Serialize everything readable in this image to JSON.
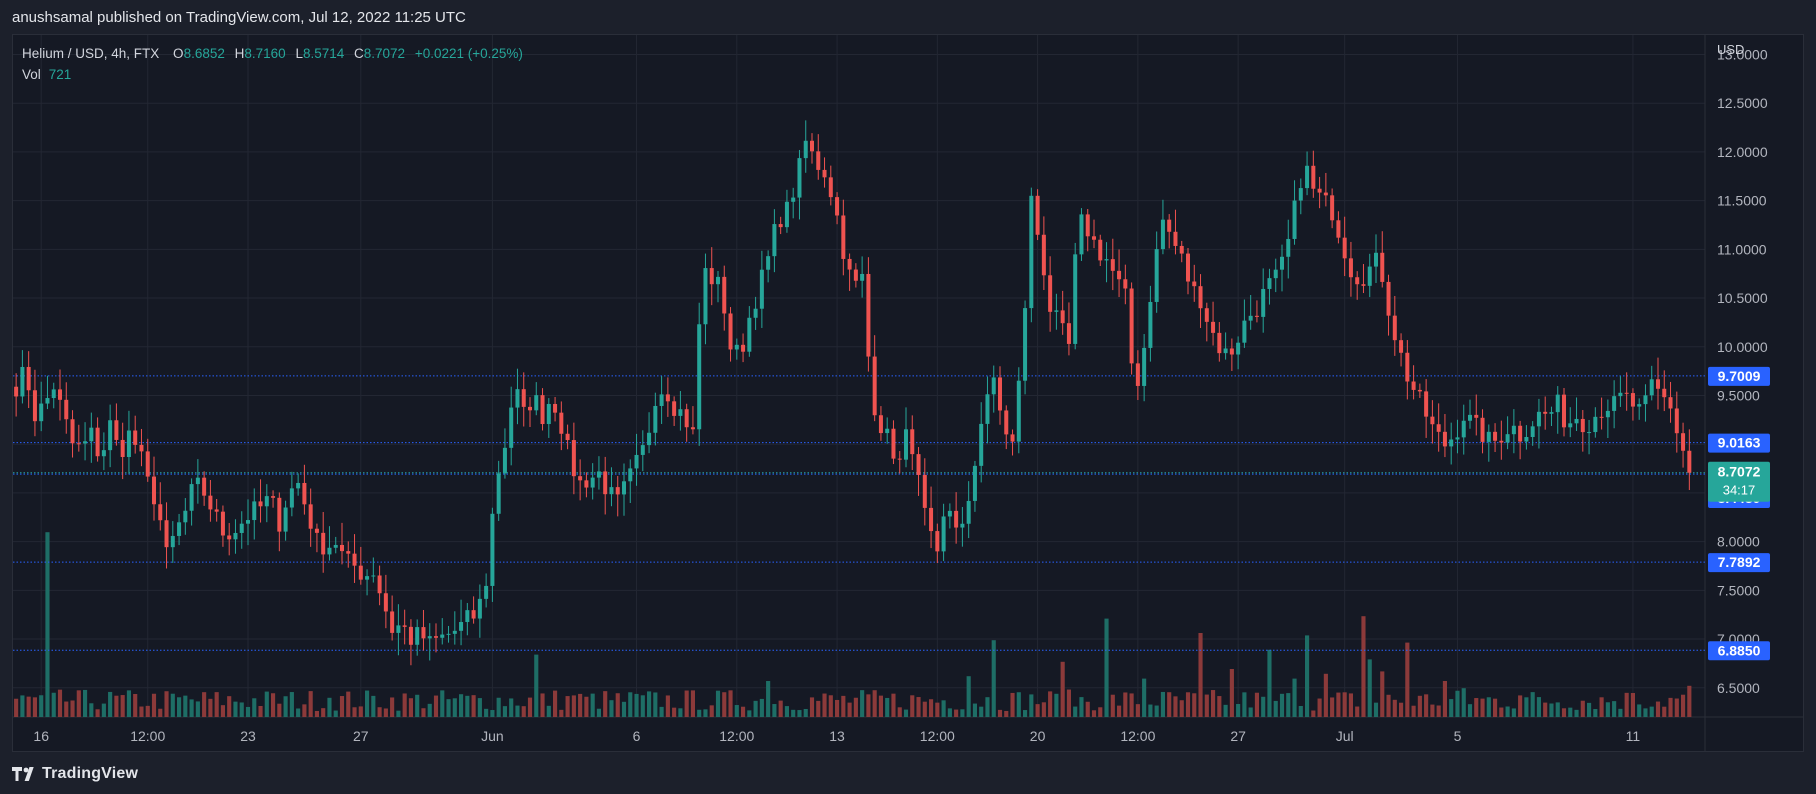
{
  "header": {
    "published_text": "anushsamal published on TradingView.com, Jul 12, 2022 11:25 UTC"
  },
  "legend": {
    "symbol": "Helium / USD, 4h, FTX",
    "o_label": "O",
    "o_value": "8.6852",
    "h_label": "H",
    "h_value": "8.7160",
    "l_label": "L",
    "l_value": "8.5714",
    "c_label": "C",
    "c_value": "8.7072",
    "change": "+0.0221 (+0.25%)",
    "vol_label": "Vol",
    "vol_value": "721"
  },
  "footer": {
    "brand": "TradingView",
    "brand_icon": "tradingview-logo-icon"
  },
  "colors": {
    "up": "#26a69a",
    "down": "#ef5350",
    "up_vol": "#1e6e66",
    "down_vol": "#8c3a3a",
    "hline": "#2962ff",
    "label_bg": "#2962ff",
    "last_bg": "#26a69a"
  },
  "chart_data": {
    "type": "candlestick",
    "currency": "USD",
    "timeframe": "4h",
    "ylim": [
      6.2,
      13.2
    ],
    "yticks": [
      "13.0000",
      "12.5000",
      "12.0000",
      "11.5000",
      "11.0000",
      "10.5000",
      "10.0000",
      "9.5000",
      "9.0000",
      "8.5000",
      "8.0000",
      "7.5000",
      "7.0000",
      "6.5000"
    ],
    "x_ticks": [
      {
        "label": "16",
        "bar": 4
      },
      {
        "label": "12:00",
        "bar": 21
      },
      {
        "label": "23",
        "bar": 37
      },
      {
        "label": "27",
        "bar": 55
      },
      {
        "label": "Jun",
        "bar": 76
      },
      {
        "label": "6",
        "bar": 99
      },
      {
        "label": "12:00",
        "bar": 115
      },
      {
        "label": "13",
        "bar": 131
      },
      {
        "label": "12:00",
        "bar": 147
      },
      {
        "label": "20",
        "bar": 163
      },
      {
        "label": "12:00",
        "bar": 179
      },
      {
        "label": "27",
        "bar": 195
      },
      {
        "label": "Jul",
        "bar": 212
      },
      {
        "label": "5",
        "bar": 230
      },
      {
        "label": "11",
        "bar": 258
      }
    ],
    "horizontal_lines": [
      9.7009,
      9.0163,
      8.6934,
      7.7892,
      6.885
    ],
    "price_labels": [
      {
        "text": "9.7009",
        "price": 9.7009
      },
      {
        "text": "9.0163",
        "price": 9.0163
      },
      {
        "text": "8.6934",
        "price": 8.6934
      },
      {
        "text": "8.4480",
        "price": 8.448
      },
      {
        "text": "7.7892",
        "price": 7.7892
      },
      {
        "text": "6.8850",
        "price": 6.885
      }
    ],
    "last_price": {
      "text": "8.7072",
      "price": 8.7072,
      "countdown": "34:17"
    },
    "anchors": [
      [
        0,
        9.6
      ],
      [
        1,
        9.75
      ],
      [
        2,
        9.3
      ],
      [
        3,
        9.4
      ],
      [
        4,
        9.6
      ],
      [
        5,
        9.3
      ],
      [
        6,
        9.0
      ],
      [
        7,
        8.95
      ],
      [
        8,
        9.1
      ],
      [
        9,
        8.85
      ],
      [
        10,
        9.2
      ],
      [
        11,
        8.9
      ],
      [
        12,
        9.1
      ],
      [
        13,
        8.95
      ],
      [
        14,
        8.6
      ],
      [
        15,
        8.4
      ],
      [
        16,
        7.85
      ],
      [
        17,
        8.1
      ],
      [
        18,
        8.3
      ],
      [
        19,
        8.6
      ],
      [
        20,
        8.5
      ],
      [
        21,
        8.3
      ],
      [
        22,
        8.1
      ],
      [
        23,
        8.1
      ],
      [
        24,
        8.2
      ],
      [
        25,
        8.3
      ],
      [
        26,
        8.35
      ],
      [
        27,
        8.45
      ],
      [
        28,
        8.2
      ],
      [
        29,
        8.5
      ],
      [
        30,
        8.6
      ],
      [
        31,
        8.3
      ],
      [
        32,
        8.0
      ],
      [
        33,
        7.95
      ],
      [
        34,
        8.0
      ],
      [
        35,
        7.8
      ],
      [
        36,
        7.75
      ],
      [
        37,
        7.65
      ],
      [
        38,
        7.7
      ],
      [
        39,
        7.4
      ],
      [
        40,
        7.1
      ],
      [
        41,
        7.15
      ],
      [
        42,
        7.0
      ],
      [
        43,
        7.05
      ],
      [
        44,
        6.95
      ],
      [
        45,
        7.0
      ],
      [
        46,
        7.05
      ],
      [
        47,
        7.1
      ],
      [
        48,
        7.2
      ],
      [
        49,
        7.25
      ],
      [
        50,
        7.6
      ],
      [
        51,
        8.6
      ],
      [
        52,
        9.0
      ],
      [
        53,
        9.6
      ],
      [
        54,
        9.3
      ],
      [
        55,
        9.5
      ],
      [
        56,
        9.3
      ],
      [
        57,
        9.5
      ],
      [
        58,
        9.2
      ],
      [
        59,
        8.8
      ],
      [
        60,
        8.6
      ],
      [
        61,
        8.65
      ],
      [
        62,
        8.7
      ],
      [
        63,
        8.5
      ],
      [
        64,
        8.4
      ],
      [
        65,
        8.6
      ],
      [
        66,
        8.8
      ],
      [
        67,
        9.0
      ],
      [
        68,
        9.5
      ],
      [
        69,
        9.6
      ],
      [
        70,
        9.4
      ],
      [
        71,
        9.3
      ],
      [
        72,
        9.1
      ],
      [
        73,
        10.8
      ],
      [
        74,
        10.7
      ],
      [
        75,
        10.6
      ],
      [
        76,
        10.0
      ],
      [
        77,
        9.9
      ],
      [
        78,
        10.3
      ],
      [
        79,
        10.6
      ],
      [
        80,
        10.9
      ],
      [
        81,
        11.3
      ],
      [
        82,
        11.4
      ],
      [
        83,
        11.7
      ],
      [
        84,
        12.1
      ],
      [
        85,
        11.9
      ],
      [
        86,
        11.8
      ],
      [
        87,
        11.5
      ],
      [
        88,
        11.0
      ],
      [
        89,
        10.6
      ],
      [
        90,
        10.7
      ],
      [
        91,
        9.5
      ],
      [
        92,
        9.2
      ],
      [
        93,
        9.0
      ],
      [
        94,
        8.8
      ],
      [
        95,
        9.2
      ],
      [
        96,
        8.6
      ],
      [
        97,
        8.1
      ],
      [
        98,
        7.8
      ],
      [
        99,
        8.4
      ],
      [
        100,
        8.2
      ],
      [
        101,
        8.1
      ],
      [
        102,
        8.8
      ],
      [
        103,
        9.5
      ],
      [
        104,
        9.6
      ],
      [
        105,
        9.2
      ],
      [
        106,
        9.0
      ],
      [
        107,
        9.9
      ],
      [
        108,
        11.5
      ],
      [
        109,
        11.0
      ],
      [
        110,
        10.4
      ],
      [
        111,
        10.2
      ],
      [
        112,
        10.0
      ],
      [
        113,
        11.3
      ],
      [
        114,
        11.2
      ],
      [
        115,
        11.0
      ],
      [
        116,
        10.9
      ],
      [
        117,
        10.7
      ],
      [
        118,
        10.5
      ],
      [
        119,
        9.5
      ],
      [
        120,
        10.0
      ],
      [
        121,
        10.8
      ],
      [
        122,
        11.3
      ],
      [
        123,
        11.1
      ],
      [
        124,
        10.9
      ],
      [
        125,
        10.6
      ],
      [
        126,
        10.5
      ],
      [
        127,
        10.2
      ],
      [
        128,
        10.0
      ],
      [
        129,
        9.9
      ],
      [
        130,
        10.1
      ],
      [
        131,
        10.3
      ],
      [
        132,
        10.4
      ],
      [
        133,
        10.6
      ],
      [
        134,
        10.7
      ],
      [
        135,
        10.9
      ],
      [
        136,
        11.4
      ],
      [
        137,
        11.9
      ],
      [
        138,
        11.6
      ],
      [
        139,
        11.5
      ],
      [
        140,
        11.4
      ],
      [
        141,
        11.1
      ],
      [
        142,
        10.8
      ],
      [
        143,
        10.7
      ],
      [
        144,
        10.8
      ],
      [
        145,
        10.9
      ],
      [
        146,
        10.4
      ],
      [
        147,
        10.0
      ],
      [
        148,
        9.7
      ],
      [
        149,
        9.5
      ],
      [
        150,
        9.3
      ],
      [
        151,
        9.1
      ],
      [
        152,
        9.0
      ],
      [
        153,
        9.1
      ],
      [
        154,
        9.3
      ],
      [
        155,
        9.2
      ],
      [
        156,
        9.1
      ],
      [
        157,
        9.0
      ],
      [
        158,
        9.1
      ],
      [
        159,
        9.2
      ],
      [
        160,
        9.1
      ],
      [
        161,
        9.2
      ],
      [
        162,
        9.3
      ],
      [
        163,
        9.3
      ],
      [
        164,
        9.4
      ],
      [
        165,
        9.2
      ],
      [
        166,
        9.3
      ],
      [
        167,
        9.2
      ],
      [
        168,
        9.3
      ],
      [
        169,
        9.4
      ],
      [
        170,
        9.4
      ],
      [
        171,
        9.5
      ],
      [
        172,
        9.4
      ],
      [
        173,
        9.3
      ],
      [
        174,
        9.6
      ],
      [
        175,
        9.5
      ],
      [
        176,
        9.4
      ],
      [
        177,
        9.0
      ],
      [
        178,
        8.8
      ],
      [
        179,
        8.7
      ]
    ],
    "volume_spikes": [
      [
        3,
        7.7
      ],
      [
        33,
        0.8
      ],
      [
        55,
        2.6
      ],
      [
        57,
        1.1
      ],
      [
        59,
        0.9
      ],
      [
        80,
        1.5
      ],
      [
        101,
        1.7
      ],
      [
        104,
        3.2
      ],
      [
        111,
        2.3
      ],
      [
        116,
        4.1
      ],
      [
        120,
        1.6
      ],
      [
        126,
        3.5
      ],
      [
        129,
        2.0
      ],
      [
        133,
        2.8
      ],
      [
        136,
        1.6
      ],
      [
        137,
        3.4
      ],
      [
        139,
        1.8
      ],
      [
        143,
        4.2
      ],
      [
        144,
        2.4
      ],
      [
        145,
        1.9
      ],
      [
        148,
        3.1
      ],
      [
        152,
        1.5
      ],
      [
        154,
        1.2
      ],
      [
        160,
        0.9
      ],
      [
        172,
        1.0
      ],
      [
        178,
        1.3
      ],
      [
        200,
        4.3
      ],
      [
        201,
        5.7
      ],
      [
        205,
        1.8
      ],
      [
        236,
        1.0
      ],
      [
        252,
        1.3
      ]
    ]
  }
}
